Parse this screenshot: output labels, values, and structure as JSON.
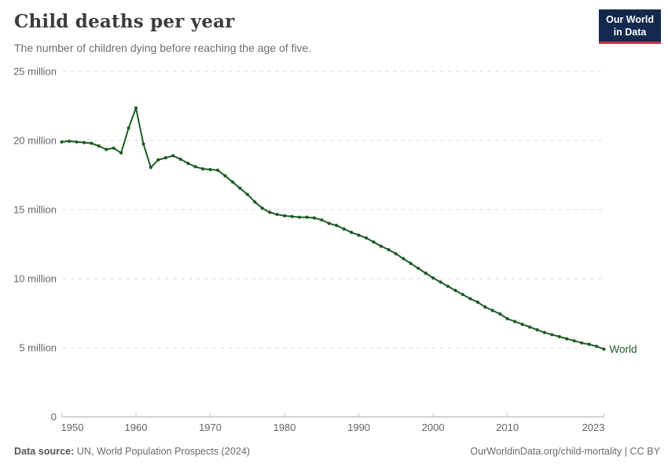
{
  "header": {
    "title": "Child deaths per year",
    "subtitle": "The number of children dying before reaching the age of five.",
    "logo": {
      "line1": "Our World",
      "line2": "in Data"
    }
  },
  "footer": {
    "datasource_label": "Data source:",
    "datasource_value": " UN, World Population Prospects (2024)",
    "credit": "OurWorldinData.org/child-mortality | CC BY"
  },
  "colors": {
    "line": "#1d5c27",
    "gridline": "#dadada",
    "axis_line": "#a8a8a8",
    "tick_mark": "#c6c6c6",
    "axis_text": "#666666",
    "logo_bg": "#12294d",
    "logo_accent": "#cf3540"
  },
  "chart_data": {
    "type": "line",
    "title": "Child deaths per year",
    "xlabel": "",
    "ylabel": "",
    "unit": "million",
    "grid": "dashed-horizontal",
    "legend_position": "end-of-line",
    "xlim": [
      1950,
      2023
    ],
    "ylim": [
      0,
      25
    ],
    "x_ticks": [
      {
        "value": 1950,
        "label": "1950"
      },
      {
        "value": 1960,
        "label": "1960"
      },
      {
        "value": 1970,
        "label": "1970"
      },
      {
        "value": 1980,
        "label": "1980"
      },
      {
        "value": 1990,
        "label": "1990"
      },
      {
        "value": 2000,
        "label": "2000"
      },
      {
        "value": 2010,
        "label": "2010"
      },
      {
        "value": 2023,
        "label": "2023"
      }
    ],
    "y_ticks": [
      {
        "value": 25,
        "label": "25 million"
      },
      {
        "value": 20,
        "label": "20 million"
      },
      {
        "value": 15,
        "label": "15 million"
      },
      {
        "value": 10,
        "label": "10 million"
      },
      {
        "value": 5,
        "label": "5 million"
      },
      {
        "value": 0,
        "label": "0"
      }
    ],
    "x": [
      1950,
      1951,
      1952,
      1953,
      1954,
      1955,
      1956,
      1957,
      1958,
      1959,
      1960,
      1961,
      1962,
      1963,
      1964,
      1965,
      1966,
      1967,
      1968,
      1969,
      1970,
      1971,
      1972,
      1973,
      1974,
      1975,
      1976,
      1977,
      1978,
      1979,
      1980,
      1981,
      1982,
      1983,
      1984,
      1985,
      1986,
      1987,
      1988,
      1989,
      1990,
      1991,
      1992,
      1993,
      1994,
      1995,
      1996,
      1997,
      1998,
      1999,
      2000,
      2001,
      2002,
      2003,
      2004,
      2005,
      2006,
      2007,
      2008,
      2009,
      2010,
      2011,
      2012,
      2013,
      2014,
      2015,
      2016,
      2017,
      2018,
      2019,
      2020,
      2021,
      2022,
      2023
    ],
    "series": [
      {
        "name": "World",
        "end_label": "World",
        "values": [
          19.9,
          19.95,
          19.9,
          19.85,
          19.8,
          19.6,
          19.35,
          19.45,
          19.1,
          20.9,
          22.35,
          19.75,
          18.05,
          18.6,
          18.75,
          18.9,
          18.65,
          18.35,
          18.1,
          17.95,
          17.9,
          17.85,
          17.45,
          17.0,
          16.55,
          16.1,
          15.55,
          15.1,
          14.8,
          14.65,
          14.55,
          14.5,
          14.45,
          14.45,
          14.4,
          14.25,
          14.0,
          13.85,
          13.6,
          13.35,
          13.15,
          12.95,
          12.65,
          12.35,
          12.1,
          11.8,
          11.45,
          11.1,
          10.75,
          10.4,
          10.05,
          9.75,
          9.45,
          9.15,
          8.85,
          8.55,
          8.3,
          7.95,
          7.7,
          7.45,
          7.1,
          6.9,
          6.7,
          6.5,
          6.3,
          6.1,
          5.95,
          5.8,
          5.65,
          5.5,
          5.35,
          5.25,
          5.1,
          4.9
        ]
      }
    ]
  }
}
